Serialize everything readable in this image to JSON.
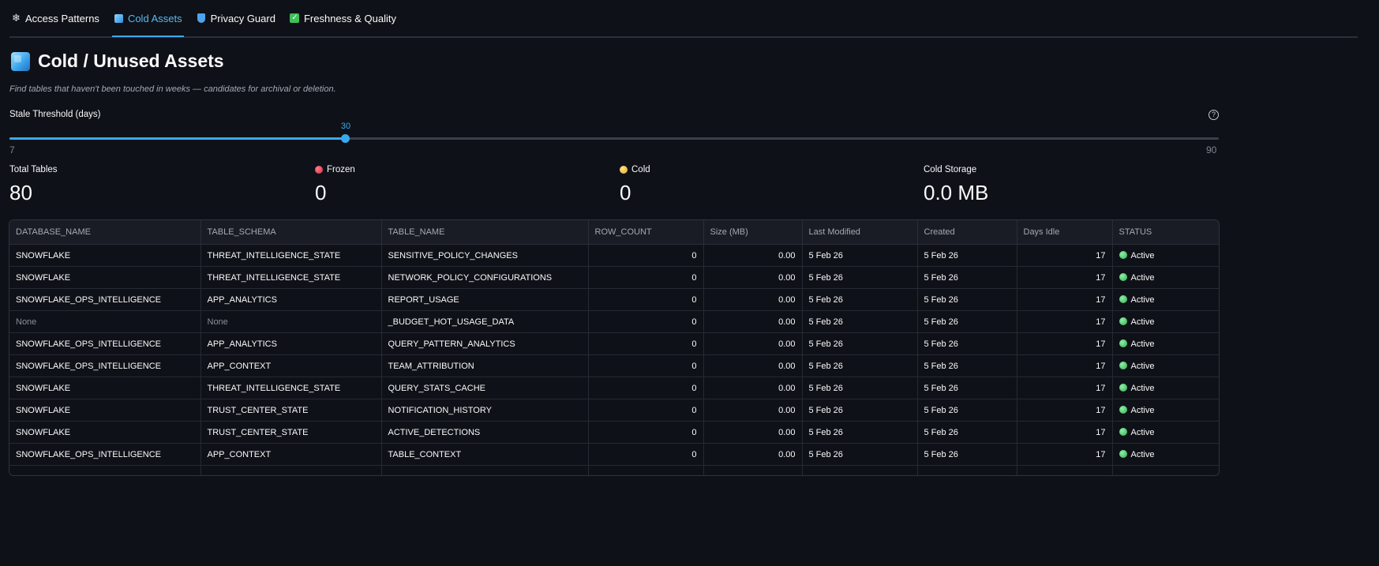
{
  "tabs": [
    {
      "label": "Access Patterns",
      "icon": "snowflake-icon"
    },
    {
      "label": "Cold Assets",
      "icon": "cube-icon"
    },
    {
      "label": "Privacy Guard",
      "icon": "shield-icon"
    },
    {
      "label": "Freshness & Quality",
      "icon": "check-box-icon"
    }
  ],
  "page": {
    "title": "Cold / Unused Assets",
    "subtitle": "Find tables that haven't been touched in weeks — candidates for archival or deletion."
  },
  "slider": {
    "label": "Stale Threshold (days)",
    "value": "30",
    "min": "7",
    "max": "90",
    "help": "?"
  },
  "metrics": {
    "total": {
      "label": "Total Tables",
      "value": "80"
    },
    "frozen": {
      "label": "Frozen",
      "value": "0"
    },
    "cold": {
      "label": "Cold",
      "value": "0"
    },
    "storage": {
      "label": "Cold Storage",
      "value": "0.0 MB"
    }
  },
  "table": {
    "columns": [
      "DATABASE_NAME",
      "TABLE_SCHEMA",
      "TABLE_NAME",
      "ROW_COUNT",
      "Size (MB)",
      "Last Modified",
      "Created",
      "Days Idle",
      "STATUS"
    ],
    "rows": [
      [
        "SNOWFLAKE",
        "THREAT_INTELLIGENCE_STATE",
        "SENSITIVE_POLICY_CHANGES",
        "0",
        "0.00",
        "5 Feb 26",
        "5 Feb 26",
        "17",
        "Active"
      ],
      [
        "SNOWFLAKE",
        "THREAT_INTELLIGENCE_STATE",
        "NETWORK_POLICY_CONFIGURATIONS",
        "0",
        "0.00",
        "5 Feb 26",
        "5 Feb 26",
        "17",
        "Active"
      ],
      [
        "SNOWFLAKE_OPS_INTELLIGENCE",
        "APP_ANALYTICS",
        "REPORT_USAGE",
        "0",
        "0.00",
        "5 Feb 26",
        "5 Feb 26",
        "17",
        "Active"
      ],
      [
        "None",
        "None",
        "_BUDGET_HOT_USAGE_DATA",
        "0",
        "0.00",
        "5 Feb 26",
        "5 Feb 26",
        "17",
        "Active"
      ],
      [
        "SNOWFLAKE_OPS_INTELLIGENCE",
        "APP_ANALYTICS",
        "QUERY_PATTERN_ANALYTICS",
        "0",
        "0.00",
        "5 Feb 26",
        "5 Feb 26",
        "17",
        "Active"
      ],
      [
        "SNOWFLAKE_OPS_INTELLIGENCE",
        "APP_CONTEXT",
        "TEAM_ATTRIBUTION",
        "0",
        "0.00",
        "5 Feb 26",
        "5 Feb 26",
        "17",
        "Active"
      ],
      [
        "SNOWFLAKE",
        "THREAT_INTELLIGENCE_STATE",
        "QUERY_STATS_CACHE",
        "0",
        "0.00",
        "5 Feb 26",
        "5 Feb 26",
        "17",
        "Active"
      ],
      [
        "SNOWFLAKE",
        "TRUST_CENTER_STATE",
        "NOTIFICATION_HISTORY",
        "0",
        "0.00",
        "5 Feb 26",
        "5 Feb 26",
        "17",
        "Active"
      ],
      [
        "SNOWFLAKE",
        "TRUST_CENTER_STATE",
        "ACTIVE_DETECTIONS",
        "0",
        "0.00",
        "5 Feb 26",
        "5 Feb 26",
        "17",
        "Active"
      ],
      [
        "SNOWFLAKE_OPS_INTELLIGENCE",
        "APP_CONTEXT",
        "TABLE_CONTEXT",
        "0",
        "0.00",
        "5 Feb 26",
        "5 Feb 26",
        "17",
        "Active"
      ]
    ]
  },
  "colors": {
    "accent": "#3aa9ee",
    "background": "#0e1117",
    "active_status": "#2fae55",
    "frozen": "#d42b45",
    "cold": "#e0a92b"
  }
}
